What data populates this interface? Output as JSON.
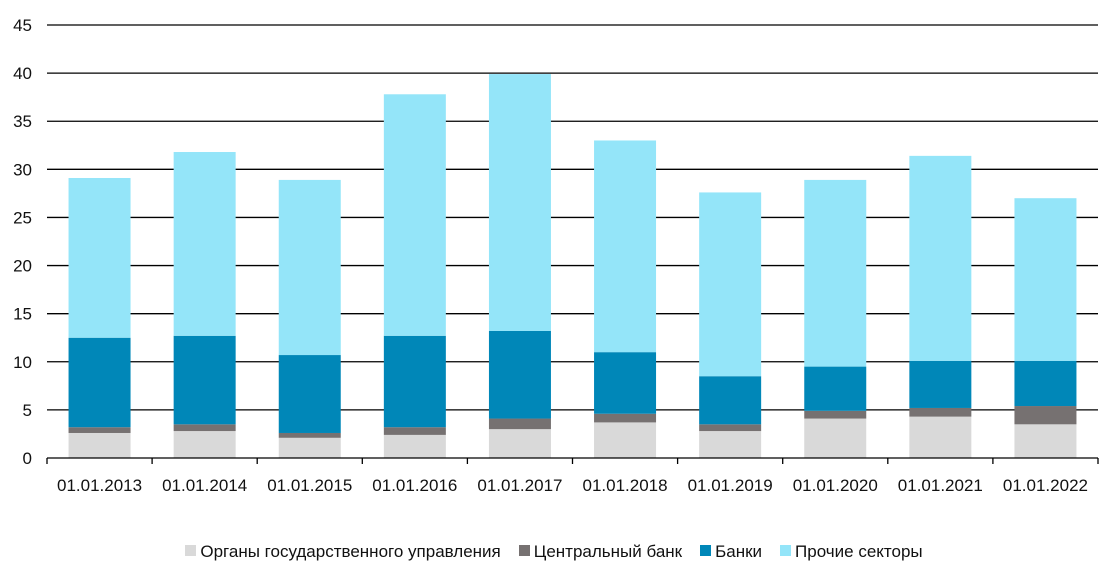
{
  "chart_data": {
    "type": "bar",
    "stacked": true,
    "categories": [
      "01.01.2013",
      "01.01.2014",
      "01.01.2015",
      "01.01.2016",
      "01.01.2017",
      "01.01.2018",
      "01.01.2019",
      "01.01.2020",
      "01.01.2021",
      "01.01.2022"
    ],
    "series": [
      {
        "name": "Органы государственного управления",
        "color": "#d9d9d9",
        "values": [
          2.6,
          2.8,
          2.1,
          2.4,
          3.0,
          3.7,
          2.8,
          4.1,
          4.3,
          3.5
        ]
      },
      {
        "name": "Центральный банк",
        "color": "#767171",
        "values": [
          0.6,
          0.7,
          0.5,
          0.8,
          1.1,
          0.9,
          0.7,
          0.8,
          0.9,
          1.9
        ]
      },
      {
        "name": "Банки",
        "color": "#0087b8",
        "values": [
          9.3,
          9.2,
          8.1,
          9.5,
          9.1,
          6.4,
          5.0,
          4.6,
          4.9,
          4.7
        ]
      },
      {
        "name": "Прочие секторы",
        "color": "#94e5f9",
        "values": [
          16.6,
          19.1,
          18.2,
          25.1,
          26.7,
          22.0,
          19.1,
          19.4,
          21.3,
          16.9
        ]
      }
    ],
    "ylim": [
      0,
      45
    ],
    "yticks": [
      0,
      5,
      10,
      15,
      20,
      25,
      30,
      35,
      40,
      45
    ],
    "grid": true,
    "legend_position": "bottom"
  }
}
